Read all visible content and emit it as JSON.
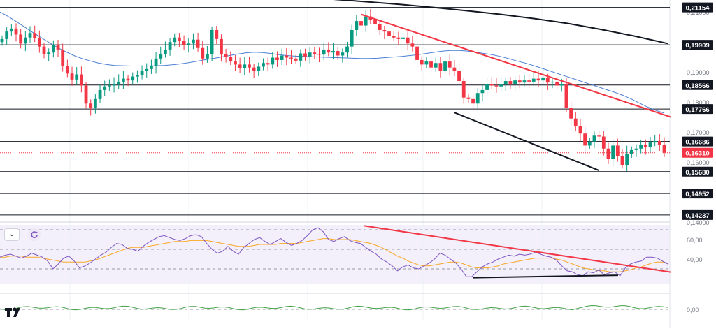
{
  "chart_data": [
    {
      "type": "candlestick",
      "title": "",
      "ylim": [
        0.14,
        0.214
      ],
      "price_axis_ticks": [
        "0,21000",
        "0,20000",
        "0,19000",
        "0,18000",
        "0,17000",
        "0,16000",
        "0,14000"
      ],
      "levels": [
        {
          "value": 0.21154,
          "label": "0,21154"
        },
        {
          "value": 0.19909,
          "label": "0,19909"
        },
        {
          "value": 0.18566,
          "label": "0,18566"
        },
        {
          "value": 0.17766,
          "label": "0,17766"
        },
        {
          "value": 0.16686,
          "label": "0,16686"
        },
        {
          "value": 0.1568,
          "label": "0,15680"
        },
        {
          "value": 0.14952,
          "label": "0,14952"
        },
        {
          "value": 0.14237,
          "label": "0,14237"
        }
      ],
      "current_price": {
        "value": 0.1631,
        "label": "0,16310"
      },
      "colors": {
        "up": "#089981",
        "down": "#f23645",
        "ma_fast": "#4a7fd4",
        "ma_slow": "#131722",
        "trendline": "#f23645",
        "support": "#131722",
        "level": "#131722"
      },
      "candles_close": [
        0.201,
        0.2035,
        0.2045,
        0.2025,
        0.1995,
        0.2015,
        0.203,
        0.2012,
        0.1985,
        0.196,
        0.1965,
        0.199,
        0.1975,
        0.192,
        0.1895,
        0.1875,
        0.1892,
        0.1855,
        0.1795,
        0.178,
        0.181,
        0.184,
        0.1852,
        0.1855,
        0.186,
        0.1868,
        0.1878,
        0.1872,
        0.1885,
        0.189,
        0.1905,
        0.191,
        0.192,
        0.1945,
        0.196,
        0.1975,
        0.2,
        0.2015,
        0.2005,
        0.199,
        0.1995,
        0.2008,
        0.198,
        0.1945,
        0.196,
        0.204,
        0.201,
        0.196,
        0.195,
        0.1935,
        0.1925,
        0.1912,
        0.1925,
        0.1915,
        0.1905,
        0.1918,
        0.193,
        0.1925,
        0.1948,
        0.194,
        0.1955,
        0.1948,
        0.1945,
        0.1938,
        0.1962,
        0.1952,
        0.1965,
        0.196,
        0.1958,
        0.1975,
        0.1965,
        0.197,
        0.1955,
        0.1965,
        0.1985,
        0.204,
        0.207,
        0.2055,
        0.2085,
        0.2075,
        0.206,
        0.204,
        0.2035,
        0.202,
        0.2015,
        0.201,
        0.2015,
        0.1995,
        0.1985,
        0.194,
        0.1925,
        0.1935,
        0.1915,
        0.193,
        0.1905,
        0.1935,
        0.1915,
        0.1905,
        0.187,
        0.1815,
        0.181,
        0.1795,
        0.183,
        0.184,
        0.186,
        0.1855,
        0.1852,
        0.1858,
        0.187,
        0.186,
        0.1872,
        0.1865,
        0.1872,
        0.1868,
        0.1878,
        0.1872,
        0.1882,
        0.1865,
        0.1868,
        0.1855,
        0.186,
        0.178,
        0.1745,
        0.172,
        0.1695,
        0.1655,
        0.1668,
        0.1688,
        0.1685,
        0.1645,
        0.161,
        0.1655,
        0.162,
        0.159,
        0.1628,
        0.164,
        0.1645,
        0.1658,
        0.165,
        0.1665,
        0.167,
        0.1658,
        0.1631
      ],
      "sma_fast": [
        0.21,
        0.2085,
        0.2068,
        0.205,
        0.2032,
        0.2015,
        0.1998,
        0.1982,
        0.1968,
        0.1955,
        0.1945,
        0.1937,
        0.193,
        0.1925,
        0.1922,
        0.1921,
        0.192,
        0.192,
        0.192,
        0.1921,
        0.1922,
        0.1924,
        0.1927,
        0.1931,
        0.1936,
        0.1941,
        0.1945,
        0.195,
        0.1955,
        0.196,
        0.1964,
        0.1966,
        0.1965,
        0.1962,
        0.1958,
        0.1955,
        0.1953,
        0.1952,
        0.1951,
        0.195,
        0.1949,
        0.1948,
        0.1947,
        0.1946,
        0.1945,
        0.1945,
        0.1946,
        0.1948,
        0.195,
        0.1952,
        0.1955,
        0.1958,
        0.1962,
        0.1966,
        0.197,
        0.1972,
        0.1972,
        0.197,
        0.1966,
        0.1962,
        0.1958,
        0.1952,
        0.1945,
        0.1937,
        0.193,
        0.1922,
        0.1913,
        0.1904,
        0.1895,
        0.1886,
        0.1877,
        0.1868,
        0.1859,
        0.185,
        0.1841,
        0.1832,
        0.1822,
        0.181,
        0.1796,
        0.1783,
        0.1772,
        0.1763
      ],
      "sma_slow": [
        0.215,
        0.2142,
        0.2134,
        0.2125,
        0.2115,
        0.2104,
        0.2092,
        0.2078,
        0.2062,
        0.2042,
        0.202,
        0.1995
      ],
      "rsi": {
        "ylim": [
          15,
          75
        ],
        "ticks": [
          "60,00",
          "40,00"
        ],
        "levels": [
          70,
          50,
          30
        ],
        "rsi_color": "#7e57c2",
        "signal_color": "#f9a825",
        "rsi_values": [
          42,
          44,
          45,
          43,
          41,
          43,
          46,
          44,
          42,
          38,
          30,
          35,
          41,
          43,
          38,
          31,
          33,
          36,
          40,
          44,
          47,
          52,
          56,
          55,
          51,
          50,
          48,
          53,
          57,
          60,
          63,
          64,
          62,
          60,
          59,
          61,
          64,
          65,
          63,
          56,
          50,
          46,
          48,
          53,
          48,
          45,
          52,
          56,
          60,
          62,
          58,
          55,
          58,
          61,
          57,
          54,
          56,
          59,
          64,
          70,
          72,
          68,
          60,
          58,
          61,
          63,
          59,
          57,
          56,
          52,
          48,
          45,
          40,
          37,
          33,
          28,
          32,
          34,
          31,
          30,
          33,
          36,
          40,
          46,
          44,
          40,
          36,
          30,
          22,
          22,
          27,
          32,
          35,
          37,
          40,
          42,
          44,
          43,
          45,
          44,
          45,
          47,
          45,
          43,
          42,
          39,
          33,
          28,
          27,
          24,
          23,
          27,
          26,
          29,
          24,
          26,
          27,
          23,
          31,
          35,
          37,
          38,
          42,
          42,
          41,
          38,
          35
        ],
        "signal_values": [
          42,
          42,
          43,
          43,
          43,
          42,
          42,
          42,
          41,
          40,
          39,
          38,
          37,
          37,
          37,
          37,
          37,
          38,
          39,
          41,
          43,
          45,
          47,
          49,
          51,
          52,
          52,
          52,
          53,
          54,
          55,
          56,
          57,
          58,
          58,
          58,
          59,
          59,
          59,
          59,
          58,
          57,
          56,
          55,
          54,
          53,
          53,
          53,
          54,
          55,
          55,
          55,
          55,
          56,
          56,
          56,
          56,
          57,
          58,
          59,
          60,
          61,
          61,
          60,
          60,
          60,
          60,
          59,
          58,
          57,
          56,
          54,
          52,
          49,
          46,
          43,
          41,
          38,
          36,
          34,
          33,
          33,
          34,
          35,
          36,
          37,
          37,
          36,
          34,
          32,
          31,
          31,
          31,
          32,
          33,
          35,
          36,
          37,
          38,
          39,
          40,
          41,
          41,
          41,
          41,
          40,
          39,
          37,
          35,
          33,
          31,
          30,
          29,
          28,
          28,
          27,
          27,
          27,
          28,
          29,
          31,
          32,
          34,
          36,
          37,
          37,
          36
        ]
      }
    }
  ]
}
